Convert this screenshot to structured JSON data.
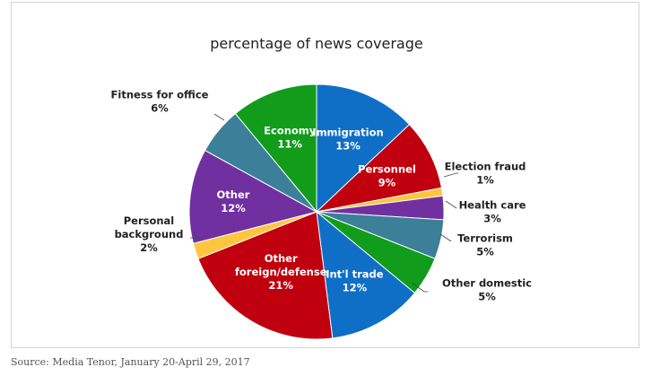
{
  "chart_data": {
    "type": "pie",
    "title": "percentage of news coverage",
    "slices": [
      {
        "label": "Immigration",
        "value": 13,
        "display": "13%",
        "color": "#0f6fc6",
        "label_style": "inside"
      },
      {
        "label": "Personnel",
        "value": 9,
        "display": "9%",
        "color": "#c0000e",
        "label_style": "inside"
      },
      {
        "label": "Election fraud",
        "value": 1,
        "display": "1%",
        "color": "#ffc53d",
        "label_style": "outside"
      },
      {
        "label": "Health care",
        "value": 3,
        "display": "3%",
        "color": "#7030a0",
        "label_style": "outside"
      },
      {
        "label": "Terrorism",
        "value": 5,
        "display": "5%",
        "color": "#3b7f99",
        "label_style": "outside"
      },
      {
        "label": "Other domestic",
        "value": 5,
        "display": "5%",
        "color": "#119c1c",
        "label_style": "outside"
      },
      {
        "label": "Int'l trade",
        "value": 12,
        "display": "12%",
        "color": "#0f6fc6",
        "label_style": "inside"
      },
      {
        "label": "Other foreign/defense",
        "value": 21,
        "display": "21%",
        "color": "#c0000e",
        "label_style": "inside"
      },
      {
        "label": "Personal background",
        "value": 2,
        "display": "2%",
        "color": "#ffc53d",
        "label_style": "outside"
      },
      {
        "label": "Other",
        "value": 12,
        "display": "12%",
        "color": "#7030a0",
        "label_style": "inside"
      },
      {
        "label": "Fitness for office",
        "value": 6,
        "display": "6%",
        "color": "#3b7f99",
        "label_style": "outside"
      },
      {
        "label": "Economy",
        "value": 11,
        "display": "11%",
        "color": "#119c1c",
        "label_style": "inside"
      }
    ]
  },
  "source": "Source: Media Tenor, January 20-April 29, 2017"
}
